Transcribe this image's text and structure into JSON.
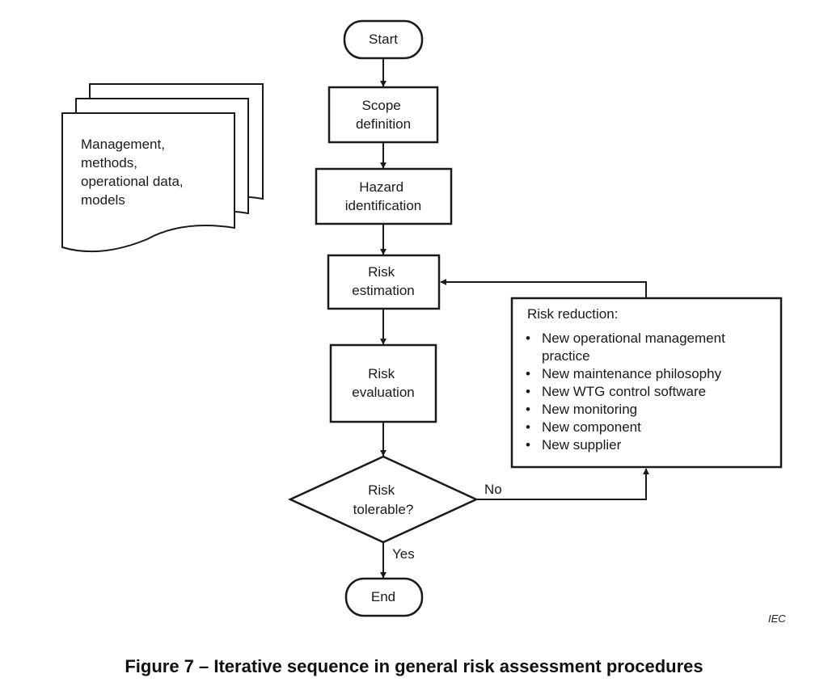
{
  "diagram": {
    "start": "Start",
    "scope": [
      "Scope",
      "definition"
    ],
    "hazard": [
      "Hazard",
      "identification"
    ],
    "estimation": [
      "Risk",
      "estimation"
    ],
    "evaluation": [
      "Risk",
      "evaluation"
    ],
    "decision": [
      "Risk",
      "tolerable?"
    ],
    "end": "End",
    "yes_label": "Yes",
    "no_label": "No",
    "inputs": [
      "Management,",
      "methods,",
      "operational data,",
      "models"
    ],
    "reduction": {
      "title": "Risk reduction:",
      "bullet": "•",
      "items": [
        [
          "New operational management",
          "practice"
        ],
        [
          "New maintenance philosophy"
        ],
        [
          "New WTG control software"
        ],
        [
          "New monitoring"
        ],
        [
          "New component"
        ],
        [
          "New supplier"
        ]
      ]
    }
  },
  "caption": "Figure 7 – Iterative sequence in general risk assessment procedures",
  "credit": "IEC"
}
